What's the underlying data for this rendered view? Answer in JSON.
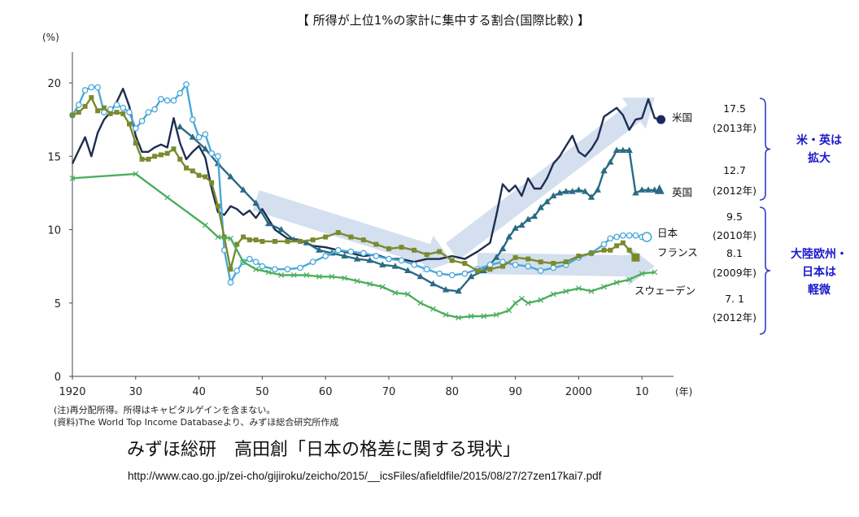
{
  "chart_data": {
    "type": "line",
    "title": "【 所得が上位1%の家計に集中する割合(国際比較) 】",
    "ylabel": "(%)",
    "xlabel": "(年)",
    "ylim": [
      0,
      20
    ],
    "xlim": [
      1920,
      2015
    ],
    "y_ticks": [
      "0",
      "5",
      "10",
      "15",
      "20"
    ],
    "y_tick_values": [
      0,
      5,
      10,
      15,
      20
    ],
    "x_ticks": [
      "1920",
      "30",
      "40",
      "50",
      "60",
      "70",
      "80",
      "90",
      "2000",
      "10"
    ],
    "x_tick_values": [
      1920,
      1930,
      1940,
      1950,
      1960,
      1970,
      1980,
      1990,
      2000,
      2010
    ],
    "grid": false,
    "series": [
      {
        "name": "米国",
        "color": "#1f2d4f",
        "marker": "none",
        "x": [
          1920,
          1921,
          1922,
          1923,
          1924,
          1925,
          1926,
          1927,
          1928,
          1929,
          1930,
          1931,
          1932,
          1933,
          1934,
          1935,
          1936,
          1937,
          1938,
          1939,
          1940,
          1941,
          1942,
          1943,
          1944,
          1945,
          1946,
          1947,
          1948,
          1949,
          1950,
          1952,
          1954,
          1956,
          1958,
          1960,
          1962,
          1964,
          1966,
          1968,
          1970,
          1972,
          1974,
          1976,
          1978,
          1980,
          1982,
          1984,
          1986,
          1987,
          1988,
          1989,
          1990,
          1991,
          1992,
          1993,
          1994,
          1995,
          1996,
          1997,
          1998,
          1999,
          2000,
          2001,
          2002,
          2003,
          2004,
          2005,
          2006,
          2007,
          2008,
          2009,
          2010,
          2011,
          2012,
          2013
        ],
        "y": [
          14.5,
          15.4,
          16.3,
          15.0,
          16.6,
          17.5,
          18.0,
          18.7,
          19.6,
          18.4,
          16.4,
          15.3,
          15.3,
          15.6,
          15.8,
          15.6,
          17.6,
          15.9,
          14.8,
          15.3,
          15.7,
          14.9,
          12.8,
          11.2,
          11.0,
          11.6,
          11.4,
          11.0,
          11.3,
          10.8,
          11.4,
          10.0,
          9.4,
          9.3,
          8.9,
          8.8,
          8.6,
          8.4,
          8.2,
          8.3,
          8.0,
          8.0,
          7.8,
          8.0,
          8.0,
          8.2,
          8.0,
          8.5,
          9.1,
          11.0,
          13.1,
          12.6,
          13.0,
          12.3,
          13.5,
          12.8,
          12.8,
          13.5,
          14.5,
          15.0,
          15.7,
          16.4,
          15.3,
          15.0,
          15.5,
          16.2,
          17.7,
          18.0,
          18.3,
          17.8,
          16.8,
          17.5,
          17.6,
          18.9,
          17.6,
          17.5
        ]
      },
      {
        "name": "英国",
        "color": "#2a6b85",
        "marker": "triangle",
        "x": [
          1937,
          1939,
          1941,
          1943,
          1945,
          1947,
          1949,
          1951,
          1953,
          1955,
          1957,
          1959,
          1961,
          1963,
          1965,
          1967,
          1969,
          1971,
          1973,
          1975,
          1977,
          1979,
          1981,
          1983,
          1985,
          1987,
          1988,
          1989,
          1990,
          1991,
          1992,
          1993,
          1994,
          1995,
          1996,
          1997,
          1998,
          1999,
          2000,
          2001,
          2002,
          2003,
          2004,
          2005,
          2006,
          2007,
          2008,
          2009,
          2010,
          2011,
          2012
        ],
        "y": [
          17.0,
          16.3,
          15.5,
          14.5,
          13.6,
          12.7,
          11.8,
          10.4,
          10.0,
          9.3,
          9.1,
          8.6,
          8.4,
          8.2,
          8.0,
          7.9,
          7.6,
          7.5,
          7.2,
          6.8,
          6.3,
          5.9,
          5.8,
          6.8,
          7.2,
          8.1,
          8.7,
          9.5,
          10.1,
          10.3,
          10.7,
          10.9,
          11.5,
          11.9,
          12.3,
          12.5,
          12.6,
          12.6,
          12.7,
          12.6,
          12.2,
          12.7,
          14.0,
          14.6,
          15.4,
          15.4,
          15.4,
          12.5,
          12.7,
          12.7,
          12.7
        ]
      },
      {
        "name": "日本",
        "color": "#4aa8da",
        "marker": "open-circle",
        "x": [
          1920,
          1921,
          1922,
          1923,
          1924,
          1925,
          1926,
          1927,
          1928,
          1929,
          1930,
          1931,
          1932,
          1933,
          1934,
          1935,
          1936,
          1937,
          1938,
          1939,
          1940,
          1941,
          1942,
          1943,
          1944,
          1945,
          1946,
          1947,
          1948,
          1949,
          1950,
          1952,
          1954,
          1956,
          1958,
          1960,
          1962,
          1964,
          1966,
          1968,
          1970,
          1972,
          1974,
          1976,
          1978,
          1980,
          1982,
          1984,
          1986,
          1988,
          1990,
          1992,
          1994,
          1996,
          1998,
          2000,
          2002,
          2004,
          2005,
          2006,
          2007,
          2008,
          2009,
          2010
        ],
        "y": [
          17.8,
          18.5,
          19.5,
          19.7,
          19.7,
          18.0,
          18.2,
          18.5,
          18.3,
          18.0,
          16.9,
          17.4,
          18.0,
          18.2,
          18.9,
          18.8,
          18.8,
          19.3,
          19.9,
          17.5,
          16.3,
          16.5,
          15.2,
          15.0,
          8.6,
          6.4,
          7.2,
          7.8,
          8.0,
          7.8,
          7.5,
          7.3,
          7.3,
          7.4,
          7.8,
          8.2,
          8.6,
          8.5,
          8.4,
          8.2,
          8.0,
          7.9,
          7.6,
          7.3,
          7.0,
          6.9,
          7.0,
          7.3,
          7.6,
          7.8,
          7.6,
          7.5,
          7.2,
          7.4,
          7.6,
          8.1,
          8.4,
          9.0,
          9.4,
          9.5,
          9.6,
          9.6,
          9.6,
          9.5
        ]
      },
      {
        "name": "フランス",
        "color": "#7a8a2e",
        "marker": "square",
        "x": [
          1920,
          1921,
          1922,
          1923,
          1924,
          1925,
          1926,
          1927,
          1928,
          1929,
          1930,
          1931,
          1932,
          1933,
          1934,
          1935,
          1936,
          1937,
          1938,
          1939,
          1940,
          1941,
          1942,
          1943,
          1944,
          1945,
          1946,
          1947,
          1948,
          1949,
          1950,
          1952,
          1954,
          1956,
          1958,
          1960,
          1962,
          1964,
          1966,
          1968,
          1970,
          1972,
          1974,
          1976,
          1978,
          1980,
          1982,
          1984,
          1986,
          1988,
          1990,
          1992,
          1994,
          1996,
          1998,
          2000,
          2002,
          2004,
          2005,
          2006,
          2007,
          2008,
          2009
        ],
        "y": [
          17.8,
          18.0,
          18.4,
          19.0,
          18.1,
          18.3,
          17.9,
          18.0,
          17.9,
          17.2,
          15.9,
          14.8,
          14.8,
          15.0,
          15.1,
          15.2,
          15.5,
          14.8,
          14.2,
          14.0,
          13.7,
          13.6,
          13.2,
          11.6,
          9.5,
          7.3,
          9.0,
          9.5,
          9.3,
          9.3,
          9.2,
          9.2,
          9.2,
          9.2,
          9.3,
          9.5,
          9.8,
          9.5,
          9.3,
          9.0,
          8.7,
          8.8,
          8.6,
          8.3,
          8.5,
          7.9,
          7.7,
          7.2,
          7.3,
          7.5,
          8.1,
          8.0,
          7.8,
          7.7,
          7.8,
          8.2,
          8.4,
          8.6,
          8.6,
          8.9,
          9.1,
          8.6,
          8.1
        ]
      },
      {
        "name": "スウェーデン",
        "color": "#4caf5e",
        "marker": "x",
        "x": [
          1920,
          1930,
          1935,
          1941,
          1943,
          1945,
          1947,
          1949,
          1951,
          1953,
          1955,
          1957,
          1959,
          1961,
          1963,
          1965,
          1967,
          1969,
          1971,
          1973,
          1975,
          1977,
          1979,
          1981,
          1983,
          1985,
          1987,
          1989,
          1990,
          1991,
          1992,
          1994,
          1996,
          1998,
          2000,
          2002,
          2004,
          2006,
          2008,
          2010,
          2012
        ],
        "y": [
          13.5,
          13.8,
          12.2,
          10.3,
          9.5,
          9.4,
          7.8,
          7.3,
          7.1,
          6.9,
          6.9,
          6.9,
          6.8,
          6.8,
          6.7,
          6.5,
          6.3,
          6.1,
          5.7,
          5.6,
          5.0,
          4.6,
          4.2,
          4.0,
          4.1,
          4.1,
          4.2,
          4.5,
          5.0,
          5.3,
          5.0,
          5.2,
          5.6,
          5.8,
          6.0,
          5.8,
          6.1,
          6.4,
          6.6,
          7.0,
          7.1
        ]
      }
    ],
    "end_labels": [
      {
        "name": "米国",
        "value": "17.5",
        "year": "(2013年)"
      },
      {
        "name": "英国",
        "value": "12.7",
        "year": "(2012年)"
      },
      {
        "name": "日本",
        "value": "9.5",
        "year": "(2010年)"
      },
      {
        "name": "フランス",
        "value": "8.1",
        "year": "(2009年)"
      },
      {
        "name": "スウェーデン",
        "value": "7. 1",
        "year": "(2012年)"
      }
    ],
    "group_annotations": {
      "top": [
        "米・英は",
        "拡大"
      ],
      "bottom": [
        "大陸欧州・",
        "日本は",
        "軽微"
      ]
    },
    "trend_arrows": [
      {
        "from": [
          1949,
          12
        ],
        "to": [
          1980,
          7.8
        ],
        "color": "#c6d4ea"
      },
      {
        "from": [
          1980,
          8.5
        ],
        "to": [
          2012,
          19.0
        ],
        "color": "#c6d4ea"
      },
      {
        "from": [
          1984,
          7.7
        ],
        "to": [
          2012,
          7.5
        ],
        "color": "#c6d4ea"
      }
    ]
  },
  "notes": {
    "note1": "(注)再分配所得。所得はキャピタルゲインを含まない。",
    "note2": "(資料)The World Top Income Databaseより、みずほ総合研究所作成"
  },
  "credit": "みずほ総研　高田創「日本の格差に関する現状」",
  "url": "http://www.cao.go.jp/zei-cho/gijiroku/zeicho/2015/__icsFiles/afieldfile/2015/08/27/27zen17kai7.pdf"
}
